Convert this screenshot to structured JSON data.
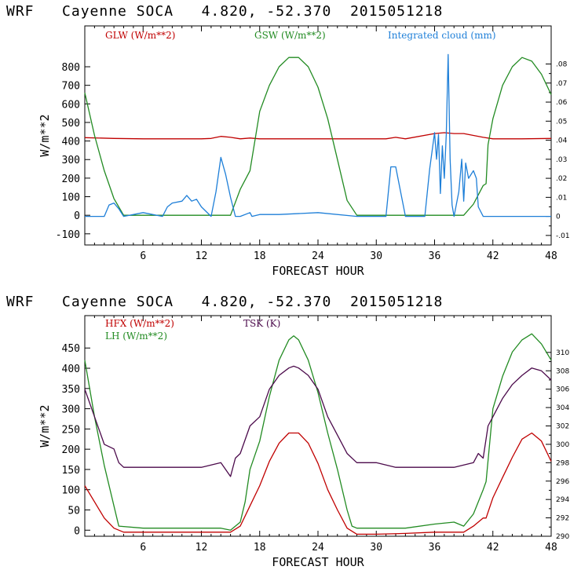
{
  "colors": {
    "red": "#c00000",
    "green": "#228b22",
    "blue": "#1e7fd8",
    "purple": "#4b0a4b",
    "axis": "#000000"
  },
  "chart_data": [
    {
      "type": "line",
      "title": "WRF   Cayenne SOCA   4.820, -52.370  2015051218",
      "xlabel": "FORECAST HOUR",
      "ylabel": "W/m**2",
      "xlim": [
        0,
        48
      ],
      "ylim": [
        -160,
        1020
      ],
      "y2lim": [
        -0.015,
        0.1
      ],
      "xticks": [
        6,
        12,
        18,
        24,
        30,
        36,
        42,
        48
      ],
      "yticks": [
        -100,
        0,
        100,
        200,
        300,
        400,
        500,
        600,
        700,
        800
      ],
      "y2ticks": [
        -0.01,
        0,
        0.01,
        0.02,
        0.03,
        0.04,
        0.05,
        0.06,
        0.07,
        0.08
      ],
      "ytick_labels": [
        "-100",
        "0",
        "100",
        "200",
        "300",
        "400",
        "500",
        "600",
        "700",
        "800"
      ],
      "y2tick_labels": [
        "-.01",
        "0",
        ".01",
        ".02",
        ".03",
        ".04",
        ".05",
        ".06",
        ".07",
        ".08"
      ],
      "grid": false,
      "legend_position": "top",
      "series": [
        {
          "name": "GLW (W/m**2)",
          "axis": "left",
          "color": "red",
          "x": [
            0,
            3,
            6,
            9,
            12,
            13,
            14,
            15,
            16,
            17,
            18,
            21,
            24,
            27,
            30,
            31,
            32,
            33,
            36,
            37,
            38,
            39,
            40,
            41,
            42,
            45,
            48
          ],
          "y": [
            418,
            414,
            412,
            412,
            412,
            414,
            425,
            420,
            412,
            416,
            412,
            412,
            412,
            412,
            412,
            412,
            420,
            412,
            440,
            445,
            440,
            440,
            430,
            420,
            412,
            412,
            414
          ]
        },
        {
          "name": "GSW (W/m**2)",
          "axis": "left",
          "color": "green",
          "x": [
            0,
            1,
            2,
            3,
            4,
            15,
            16,
            17,
            18,
            19,
            20,
            21,
            22,
            23,
            24,
            25,
            26,
            27,
            28,
            39,
            40,
            41,
            41.3,
            41.5,
            42,
            43,
            44,
            45,
            46,
            47,
            48
          ],
          "y": [
            660,
            430,
            240,
            90,
            0,
            0,
            140,
            240,
            560,
            700,
            800,
            850,
            850,
            800,
            690,
            520,
            300,
            80,
            0,
            0,
            60,
            160,
            170,
            380,
            520,
            700,
            800,
            850,
            830,
            760,
            650
          ]
        },
        {
          "name": "Integrated cloud (mm)",
          "axis": "right",
          "color": "blue",
          "x": [
            0,
            2,
            2.5,
            3,
            3.5,
            4,
            6,
            8,
            8.5,
            9,
            10,
            10.5,
            11,
            11.5,
            12,
            13,
            13.5,
            14,
            14.5,
            15,
            15.5,
            16,
            17,
            17.2,
            18,
            20,
            24,
            28,
            31,
            31.5,
            32,
            32.5,
            33,
            35,
            35.5,
            36,
            36.2,
            36.4,
            36.6,
            36.8,
            37,
            37.2,
            37.4,
            37.6,
            37.8,
            38,
            38.5,
            38.8,
            39,
            39.2,
            39.5,
            40,
            40.3,
            40.5,
            41,
            42,
            48
          ],
          "y": [
            0,
            0,
            0.006,
            0.007,
            0.004,
            0,
            0.002,
            0,
            0.005,
            0.007,
            0.008,
            0.011,
            0.008,
            0.009,
            0.005,
            0,
            0.013,
            0.031,
            0.022,
            0.01,
            0,
            0,
            0.002,
            0,
            0.001,
            0.001,
            0.002,
            0,
            0,
            0.026,
            0.026,
            0.013,
            0,
            0,
            0.025,
            0.044,
            0.03,
            0.043,
            0.012,
            0.037,
            0.02,
            0.043,
            0.085,
            0.03,
            0.006,
            0,
            0.013,
            0.03,
            0.008,
            0.028,
            0.02,
            0.024,
            0.02,
            0.005,
            0,
            0,
            0
          ]
        }
      ]
    },
    {
      "type": "line",
      "title": "WRF   Cayenne SOCA   4.820, -52.370  2015051218",
      "xlabel": "FORECAST HOUR",
      "ylabel": "W/m**2",
      "xlim": [
        0,
        48
      ],
      "ylim": [
        -15,
        530
      ],
      "y2lim": [
        290,
        314
      ],
      "xticks": [
        6,
        12,
        18,
        24,
        30,
        36,
        42,
        48
      ],
      "yticks": [
        0,
        50,
        100,
        150,
        200,
        250,
        300,
        350,
        400,
        450
      ],
      "y2ticks": [
        290,
        292,
        294,
        296,
        298,
        300,
        302,
        304,
        306,
        308,
        310
      ],
      "ytick_labels": [
        "0",
        "50",
        "100",
        "150",
        "200",
        "250",
        "300",
        "350",
        "400",
        "450"
      ],
      "y2tick_labels": [
        "290",
        "292",
        "294",
        "296",
        "298",
        "300",
        "302",
        "304",
        "306",
        "308",
        "310"
      ],
      "grid": false,
      "legend_position": "top-left",
      "series": [
        {
          "name": "HFX (W/m**2)",
          "axis": "left",
          "color": "red",
          "x": [
            0,
            1,
            2,
            3,
            4,
            6,
            9,
            12,
            15,
            16,
            17,
            18,
            19,
            20,
            21,
            22,
            23,
            24,
            25,
            26,
            27,
            28,
            30,
            33,
            36,
            39,
            40,
            41,
            41.3,
            42,
            43,
            44,
            45,
            46,
            47,
            48
          ],
          "y": [
            110,
            70,
            30,
            5,
            -5,
            -5,
            -5,
            -5,
            -5,
            10,
            60,
            110,
            170,
            215,
            240,
            240,
            215,
            165,
            100,
            50,
            5,
            -10,
            -10,
            -8,
            -5,
            -5,
            10,
            30,
            30,
            80,
            130,
            180,
            225,
            240,
            220,
            170
          ]
        },
        {
          "name": "LH (W/m**2)",
          "axis": "left",
          "color": "green",
          "x": [
            0,
            1,
            2,
            3,
            3.5,
            6,
            9,
            12,
            14,
            15,
            16,
            16.5,
            17,
            18,
            19,
            20,
            21,
            21.5,
            22,
            23,
            24,
            25,
            26,
            27,
            27.5,
            28,
            30,
            33,
            36,
            38,
            39,
            40,
            41,
            41.3,
            42,
            43,
            44,
            45,
            46,
            47,
            48
          ],
          "y": [
            420,
            280,
            160,
            60,
            10,
            5,
            5,
            5,
            5,
            0,
            20,
            70,
            150,
            220,
            330,
            420,
            470,
            480,
            470,
            420,
            340,
            240,
            150,
            50,
            10,
            5,
            5,
            5,
            15,
            20,
            10,
            40,
            100,
            120,
            300,
            380,
            440,
            470,
            485,
            460,
            420
          ]
        },
        {
          "name": "TSK (K)",
          "axis": "right",
          "color": "purple",
          "x": [
            0,
            1,
            2,
            3,
            3.5,
            4,
            6,
            9,
            12,
            14,
            15,
            15.5,
            16,
            17,
            18,
            19,
            20,
            21,
            21.5,
            22,
            23,
            24,
            25,
            26,
            27,
            28,
            30,
            32,
            34,
            36,
            38,
            40,
            40.5,
            41,
            41.5,
            42,
            43,
            44,
            45,
            46,
            47,
            48
          ],
          "y": [
            306,
            303,
            300,
            299.5,
            298,
            297.5,
            297.5,
            297.5,
            297.5,
            298,
            296.5,
            298.5,
            299,
            302,
            303,
            306,
            307.5,
            308.3,
            308.5,
            308.3,
            307.5,
            306,
            303,
            301,
            299,
            298,
            298,
            297.5,
            297.5,
            297.5,
            297.5,
            298,
            299,
            298.5,
            302,
            303,
            305,
            306.5,
            307.5,
            308.3,
            308,
            307
          ]
        }
      ]
    }
  ]
}
